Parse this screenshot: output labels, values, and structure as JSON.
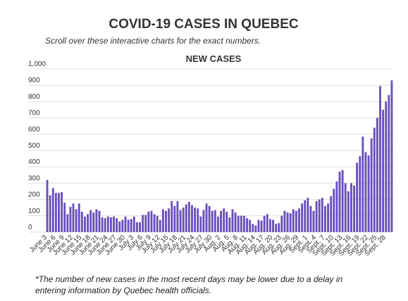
{
  "chart_data": {
    "type": "bar",
    "title": "COVID-19 CASES IN QUEBEC",
    "subtitle": "Scroll over these interactive charts for the exact numbers.",
    "chart_title": "NEW CASES",
    "footnote": "*The number of new cases in the most recent days may be lower due to a delay in entering information by Quebec health officials.",
    "color": "#6a4fbc",
    "grid": true,
    "ylim": [
      0,
      1000
    ],
    "yticks": [
      0,
      100,
      200,
      300,
      400,
      500,
      600,
      700,
      800,
      900,
      {
        "value": 1000,
        "label": "1,000"
      }
    ],
    "categories": [
      "June 3",
      null,
      null,
      "June 6",
      null,
      null,
      "June 9",
      null,
      null,
      "June 12",
      null,
      null,
      "June 15",
      null,
      null,
      "June 18",
      null,
      null,
      "June 21",
      null,
      null,
      "June 24",
      null,
      null,
      "June 27",
      null,
      null,
      "June 30",
      null,
      null,
      "July 3",
      null,
      null,
      "July 6",
      null,
      null,
      "July 9",
      null,
      null,
      "July 12",
      null,
      null,
      "July 15",
      null,
      null,
      "July 18",
      null,
      null,
      "July 21",
      null,
      null,
      "July 24",
      null,
      null,
      "July 27",
      null,
      null,
      "July 30",
      null,
      null,
      "Aug. 2",
      null,
      null,
      "Aug. 5",
      null,
      null,
      "Aug. 8",
      null,
      null,
      "Aug. 11",
      null,
      null,
      "Aug. 14",
      null,
      null,
      "Aug. 17",
      null,
      null,
      "Aug. 20",
      null,
      null,
      "Aug. 23",
      null,
      null,
      "Aug. 26",
      null,
      null,
      "Aug. 29",
      null,
      null,
      "Sept. 1",
      null,
      null,
      "Sept. 4",
      null,
      null,
      "Sept. 7",
      null,
      null,
      "Sept. 10",
      null,
      null,
      "Sept. 13",
      null,
      null,
      "Sept. 16",
      null,
      null,
      "Sept. 19",
      null,
      null,
      "Sept. 22",
      null,
      null,
      "Sept. 25",
      null,
      null,
      "Sept. 28",
      null,
      null
    ],
    "values": [
      320,
      225,
      270,
      240,
      240,
      245,
      180,
      110,
      155,
      175,
      140,
      175,
      125,
      95,
      110,
      135,
      120,
      140,
      130,
      90,
      85,
      95,
      90,
      95,
      85,
      65,
      75,
      95,
      75,
      80,
      95,
      60,
      60,
      105,
      105,
      125,
      130,
      110,
      100,
      75,
      140,
      130,
      145,
      190,
      160,
      190,
      135,
      150,
      170,
      185,
      165,
      150,
      145,
      95,
      135,
      175,
      160,
      130,
      135,
      95,
      130,
      145,
      125,
      90,
      140,
      120,
      100,
      100,
      100,
      85,
      75,
      50,
      40,
      75,
      70,
      100,
      110,
      80,
      75,
      50,
      55,
      100,
      130,
      120,
      115,
      140,
      130,
      145,
      175,
      195,
      210,
      160,
      130,
      190,
      200,
      210,
      160,
      175,
      220,
      265,
      310,
      370,
      380,
      300,
      250,
      300,
      285,
      425,
      465,
      585,
      490,
      470,
      575,
      640,
      700,
      895,
      750,
      800,
      840,
      930
    ]
  }
}
